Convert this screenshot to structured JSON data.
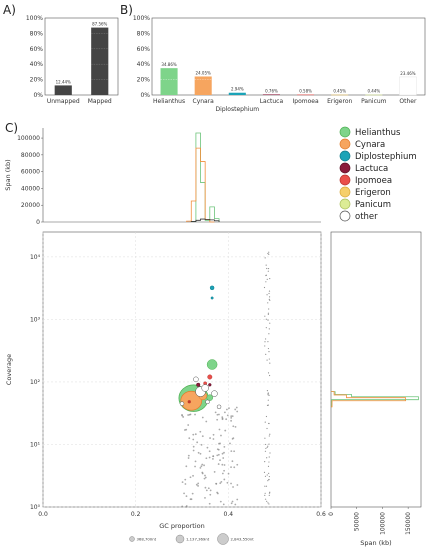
{
  "panels": {
    "a": "A)",
    "b": "B)",
    "c": "C)"
  },
  "colors": {
    "dark_bar": "#444444",
    "grid_line": "#dddddd",
    "axis": "#555555",
    "Helianthus": "#7ed48a",
    "Cynara": "#f6a55f",
    "Diplostephium": "#1ba3b7",
    "Lactuca": "#8b1a3a",
    "Ipomoea": "#ea4f4a",
    "Erigeron": "#f6cf6a",
    "Panicum": "#dcec95",
    "other": "#ffffff"
  },
  "chart_data": [
    {
      "id": "A",
      "type": "bar",
      "categories": [
        "Unmapped",
        "Mapped"
      ],
      "values": [
        12.44,
        87.56
      ],
      "data_labels": [
        "12.44%",
        "87.56%"
      ],
      "yticks": [
        "0%",
        "20%",
        "40%",
        "60%",
        "80%",
        "100%"
      ],
      "ylim": [
        0,
        100
      ]
    },
    {
      "id": "B",
      "type": "bar",
      "categories": [
        "Helianthus",
        "Cynara",
        "Diplostephium",
        "Lactuca",
        "Ipomoea",
        "Erigeron",
        "Panicum",
        "Other"
      ],
      "values": [
        34.86,
        24.05,
        2.94,
        0.76,
        0.58,
        0.45,
        0.44,
        23.46
      ],
      "data_labels": [
        "34.86%",
        "24.05%",
        "2.94%",
        "0.76%",
        "0.58%",
        "0.45%",
        "0.44%",
        "23.46%"
      ],
      "yticks": [
        "0%",
        "20%",
        "40%",
        "60%",
        "80%",
        "100%"
      ],
      "ylim": [
        0,
        100
      ]
    },
    {
      "id": "C-top",
      "type": "line",
      "ylabel": "Span (kb)",
      "yticks": [
        "0",
        "20000",
        "40000",
        "60000",
        "80000",
        "100000"
      ],
      "ylim": [
        0,
        112000
      ],
      "xlim": [
        0.0,
        0.6
      ],
      "series": [
        {
          "name": "Helianthus",
          "x": [
            0.32,
            0.33,
            0.34,
            0.35,
            0.36,
            0.37,
            0.38
          ],
          "y": [
            500,
            106000,
            47000,
            2000,
            18000,
            4000,
            0
          ]
        },
        {
          "name": "Cynara",
          "x": [
            0.31,
            0.32,
            0.33,
            0.34,
            0.35,
            0.36,
            0.37
          ],
          "y": [
            1000,
            25000,
            88000,
            72000,
            3000,
            0,
            0
          ]
        },
        {
          "name": "other",
          "x": [
            0.32,
            0.33,
            0.34,
            0.35,
            0.36,
            0.37,
            0.38
          ],
          "y": [
            500,
            2000,
            3500,
            3000,
            2500,
            1500,
            0
          ]
        }
      ]
    },
    {
      "id": "C-main",
      "type": "scatter",
      "xlabel": "GC proportion",
      "ylabel": "Coverage",
      "xlim": [
        0.0,
        0.6
      ],
      "ylim": [
        1,
        25000
      ],
      "yscale": "log",
      "xticks": [
        "0.0",
        "0.2",
        "0.4",
        "0.6"
      ],
      "yticks": [
        "10⁰",
        "10¹",
        "10²",
        "10³",
        "10⁴"
      ],
      "series": [
        {
          "name": "Helianthus",
          "points": [
            [
              0.325,
              55,
              14
            ],
            [
              0.365,
              190,
              5
            ],
            [
              0.36,
              56,
              3
            ]
          ]
        },
        {
          "name": "Cynara",
          "points": [
            [
              0.32,
              50,
              10
            ],
            [
              0.345,
              60,
              4
            ]
          ]
        },
        {
          "name": "Diplostephium",
          "points": [
            [
              0.365,
              3200,
              2
            ],
            [
              0.365,
              2200,
              1.2
            ]
          ]
        },
        {
          "name": "Lactuca",
          "points": [
            [
              0.335,
              90,
              1.8
            ],
            [
              0.36,
              90,
              1.4
            ]
          ]
        },
        {
          "name": "Ipomoea",
          "points": [
            [
              0.36,
              120,
              2.2
            ],
            [
              0.35,
              95,
              1.6
            ]
          ]
        },
        {
          "name": "other",
          "points": [
            [
              0.34,
              70,
              5
            ],
            [
              0.35,
              80,
              3.5
            ],
            [
              0.3,
              45,
              2
            ],
            [
              0.37,
              65,
              3
            ],
            [
              0.33,
              110,
              2.5
            ],
            [
              0.38,
              40,
              2
            ],
            [
              0.355,
              48,
              2
            ]
          ]
        }
      ],
      "size_legend": [
        "368,700nt",
        "1,137,369nt",
        "2,843,550nt"
      ]
    },
    {
      "id": "C-right",
      "type": "line",
      "xlabel": "Span (kb)",
      "xticks": [
        "0",
        "50000",
        "100000",
        "150000"
      ],
      "xlim": [
        0,
        175000
      ],
      "series": [
        {
          "name": "Helianthus",
          "coverage": [
            40,
            52,
            58,
            63,
            70
          ],
          "span": [
            1000,
            170000,
            40000,
            8000,
            1000
          ]
        },
        {
          "name": "Cynara",
          "coverage": [
            40,
            50,
            56,
            62,
            70
          ],
          "span": [
            2000,
            145000,
            30000,
            6000,
            500
          ]
        }
      ]
    }
  ],
  "legend": {
    "entries": [
      {
        "label": "Helianthus",
        "color": "#7ed48a",
        "edge": "#4caf50"
      },
      {
        "label": "Cynara",
        "color": "#f6a55f",
        "edge": "#e07a2a"
      },
      {
        "label": "Diplostephium",
        "color": "#1ba3b7",
        "edge": "#117a8a"
      },
      {
        "label": "Lactuca",
        "color": "#8b1a3a",
        "edge": "#5c0f25"
      },
      {
        "label": "Ipomoea",
        "color": "#ea4f4a",
        "edge": "#b8332f"
      },
      {
        "label": "Erigeron",
        "color": "#f6cf6a",
        "edge": "#d9a93a"
      },
      {
        "label": "Panicum",
        "color": "#dcec95",
        "edge": "#aabe5a"
      },
      {
        "label": "other",
        "color": "#ffffff",
        "edge": "#555555"
      }
    ]
  }
}
